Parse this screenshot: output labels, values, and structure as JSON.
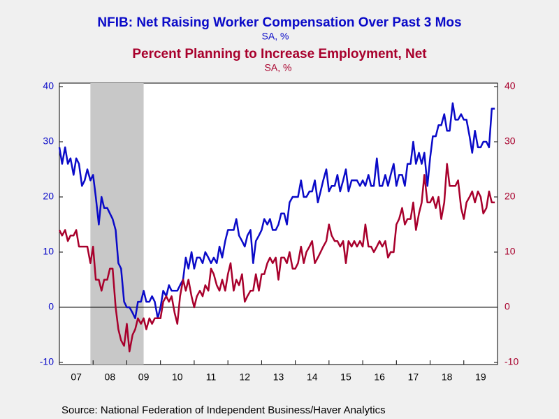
{
  "chart_data": {
    "type": "line",
    "title": "NFIB: Net Raising Worker Compensation Over Past 3 Mos",
    "subtitle": "SA, %",
    "title2": "Percent Planning to Increase Employment, Net",
    "subtitle2": "SA, %",
    "source": "Source:  National Federation of Independent Business/Haver Analytics",
    "shading": [
      2007.92,
      2009.5
    ],
    "xlim": [
      2007,
      2020
    ],
    "xticks": [
      {
        "value": 2007,
        "label": "07"
      },
      {
        "value": 2008,
        "label": "08"
      },
      {
        "value": 2009,
        "label": "09"
      },
      {
        "value": 2010,
        "label": "10"
      },
      {
        "value": 2011,
        "label": "11"
      },
      {
        "value": 2012,
        "label": "12"
      },
      {
        "value": 2013,
        "label": "13"
      },
      {
        "value": 2014,
        "label": "14"
      },
      {
        "value": 2015,
        "label": "15"
      },
      {
        "value": 2016,
        "label": "16"
      },
      {
        "value": 2017,
        "label": "17"
      },
      {
        "value": 2018,
        "label": "18"
      },
      {
        "value": 2019,
        "label": "19"
      }
    ],
    "ylim": [
      -10,
      40
    ],
    "yticks": [
      -10,
      0,
      10,
      20,
      30,
      40
    ],
    "y2lim": [
      -10,
      40
    ],
    "y2ticks": [
      -10,
      0,
      10,
      20,
      30,
      40
    ],
    "x": [
      2007,
      2007.08,
      2007.17,
      2007.25,
      2007.33,
      2007.42,
      2007.5,
      2007.58,
      2007.67,
      2007.75,
      2007.83,
      2007.92,
      2008,
      2008.08,
      2008.17,
      2008.25,
      2008.33,
      2008.42,
      2008.5,
      2008.58,
      2008.67,
      2008.75,
      2008.83,
      2008.92,
      2009,
      2009.08,
      2009.17,
      2009.25,
      2009.33,
      2009.42,
      2009.5,
      2009.58,
      2009.67,
      2009.75,
      2009.83,
      2009.92,
      2010,
      2010.08,
      2010.17,
      2010.25,
      2010.33,
      2010.42,
      2010.5,
      2010.58,
      2010.67,
      2010.75,
      2010.83,
      2010.92,
      2011,
      2011.08,
      2011.17,
      2011.25,
      2011.33,
      2011.42,
      2011.5,
      2011.58,
      2011.67,
      2011.75,
      2011.83,
      2011.92,
      2012,
      2012.08,
      2012.17,
      2012.25,
      2012.33,
      2012.42,
      2012.5,
      2012.58,
      2012.67,
      2012.75,
      2012.83,
      2012.92,
      2013,
      2013.08,
      2013.17,
      2013.25,
      2013.33,
      2013.42,
      2013.5,
      2013.58,
      2013.67,
      2013.75,
      2013.83,
      2013.92,
      2014,
      2014.08,
      2014.17,
      2014.25,
      2014.33,
      2014.42,
      2014.5,
      2014.58,
      2014.67,
      2014.75,
      2014.83,
      2014.92,
      2015,
      2015.08,
      2015.17,
      2015.25,
      2015.33,
      2015.42,
      2015.5,
      2015.58,
      2015.67,
      2015.75,
      2015.83,
      2015.92,
      2016,
      2016.08,
      2016.17,
      2016.25,
      2016.33,
      2016.42,
      2016.5,
      2016.58,
      2016.67,
      2016.75,
      2016.83,
      2016.92,
      2017,
      2017.08,
      2017.17,
      2017.25,
      2017.33,
      2017.42,
      2017.5,
      2017.58,
      2017.67,
      2017.75,
      2017.83,
      2017.92,
      2018,
      2018.08,
      2018.17,
      2018.25,
      2018.33,
      2018.42,
      2018.5,
      2018.58,
      2018.67,
      2018.75,
      2018.83,
      2018.92,
      2019,
      2019.08,
      2019.17,
      2019.25,
      2019.33,
      2019.42,
      2019.5,
      2019.58,
      2019.67,
      2019.75,
      2019.83,
      2019.92
    ],
    "series": [
      {
        "name": "NFIB: Net Raising Worker Compensation Over Past 3 Mos",
        "color": "#0a0ac8",
        "axis": "y",
        "values": [
          29,
          26,
          29,
          26,
          27,
          24,
          27,
          26,
          22,
          23,
          25,
          23,
          24,
          20,
          15,
          20,
          18,
          18,
          17,
          16,
          14,
          8,
          7,
          1,
          0,
          0,
          -1,
          -2,
          1,
          1,
          3,
          1,
          1,
          2,
          1,
          -2,
          0,
          3,
          2,
          4,
          3,
          3,
          3,
          4,
          5,
          9,
          7,
          10,
          7,
          9,
          9,
          8,
          10,
          9,
          8,
          9,
          8,
          11,
          9,
          12,
          14,
          14,
          14,
          16,
          13,
          12,
          11,
          13,
          14,
          8,
          12,
          13,
          14,
          16,
          15,
          16,
          14,
          14,
          15,
          17,
          17,
          15,
          19,
          20,
          20,
          20,
          23,
          20,
          20,
          21,
          21,
          23,
          19,
          21,
          23,
          25,
          21,
          22,
          22,
          24,
          21,
          23,
          25,
          21,
          23,
          23,
          23,
          22,
          23,
          22,
          24,
          22,
          22,
          27,
          22,
          22,
          24,
          22,
          24,
          26,
          22,
          24,
          24,
          22,
          26,
          26,
          30,
          26,
          28,
          26,
          28,
          22,
          27,
          31,
          31,
          33,
          33,
          35,
          32,
          32,
          37,
          34,
          34,
          35,
          34,
          34,
          31,
          28,
          32,
          29,
          29,
          30,
          30,
          29,
          36,
          36
        ]
      },
      {
        "name": "Percent Planning to Increase Employment, Net",
        "color": "#a8002c",
        "axis": "y2",
        "values": [
          14,
          13,
          14,
          12,
          13,
          13,
          14,
          11,
          11,
          11,
          11,
          8,
          11,
          5,
          5,
          3,
          5,
          5,
          7,
          7,
          0,
          -4,
          -6,
          -7,
          -3,
          -8,
          -5,
          -4,
          -2,
          -3,
          -2,
          -4,
          -2,
          -3,
          -2,
          -2,
          -2,
          1,
          2,
          1,
          2,
          -1,
          -3,
          2,
          5,
          3,
          5,
          2,
          0,
          2,
          3,
          2,
          4,
          3,
          7,
          6,
          4,
          3,
          5,
          3,
          6,
          8,
          3,
          5,
          4,
          6,
          1,
          2,
          3,
          3,
          6,
          3,
          6,
          6,
          8,
          9,
          8,
          9,
          5,
          9,
          9,
          8,
          10,
          7,
          7,
          8,
          11,
          8,
          10,
          11,
          12,
          8,
          9,
          10,
          11,
          12,
          15,
          13,
          12,
          12,
          11,
          12,
          8,
          12,
          11,
          12,
          11,
          12,
          11,
          15,
          11,
          11,
          10,
          11,
          12,
          11,
          12,
          9,
          10,
          10,
          15,
          16,
          18,
          15,
          16,
          16,
          19,
          14,
          17,
          19,
          24,
          19,
          19,
          20,
          18,
          20,
          16,
          19,
          26,
          22,
          22,
          22,
          23,
          18,
          16,
          19,
          20,
          21,
          19,
          21,
          20,
          17,
          18,
          21,
          19,
          19
        ]
      }
    ]
  }
}
